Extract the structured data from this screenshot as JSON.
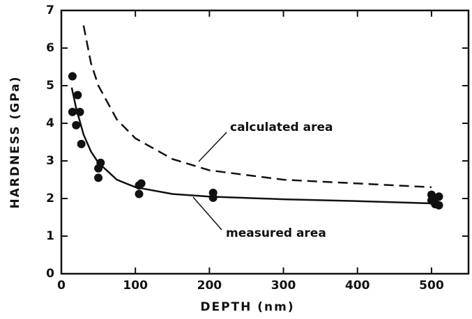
{
  "chart_data": {
    "type": "scatter",
    "x_label": "DEPTH (nm)",
    "y_label": "HARDNESS (GPa)",
    "xlim": [
      0,
      550
    ],
    "ylim": [
      0,
      7
    ],
    "xticks": [
      0,
      100,
      200,
      300,
      400,
      500
    ],
    "yticks": [
      0,
      1,
      2,
      3,
      4,
      5,
      6,
      7
    ],
    "color": "#111111",
    "points": {
      "x": [
        15,
        15,
        22,
        20,
        25,
        27,
        50,
        53,
        50,
        105,
        105,
        108,
        205,
        205,
        500,
        505,
        505,
        500,
        510,
        510
      ],
      "y": [
        5.25,
        4.3,
        4.75,
        3.95,
        4.3,
        3.45,
        2.8,
        2.95,
        2.55,
        2.35,
        2.12,
        2.4,
        2.15,
        2.02,
        2.1,
        2.0,
        1.85,
        1.95,
        1.82,
        2.05
      ]
    },
    "lines": [
      {
        "label": "calculated area",
        "dashed": true,
        "x": [
          30,
          40,
          50,
          75,
          100,
          150,
          200,
          300,
          400,
          500
        ],
        "y": [
          6.6,
          5.6,
          5.0,
          4.1,
          3.6,
          3.05,
          2.75,
          2.5,
          2.4,
          2.3
        ]
      },
      {
        "label": "measured area",
        "dashed": false,
        "x": [
          14,
          20,
          30,
          40,
          50,
          75,
          100,
          150,
          200,
          300,
          400,
          500
        ],
        "y": [
          4.95,
          4.4,
          3.7,
          3.25,
          2.95,
          2.5,
          2.3,
          2.12,
          2.05,
          1.98,
          1.93,
          1.87
        ]
      }
    ]
  }
}
